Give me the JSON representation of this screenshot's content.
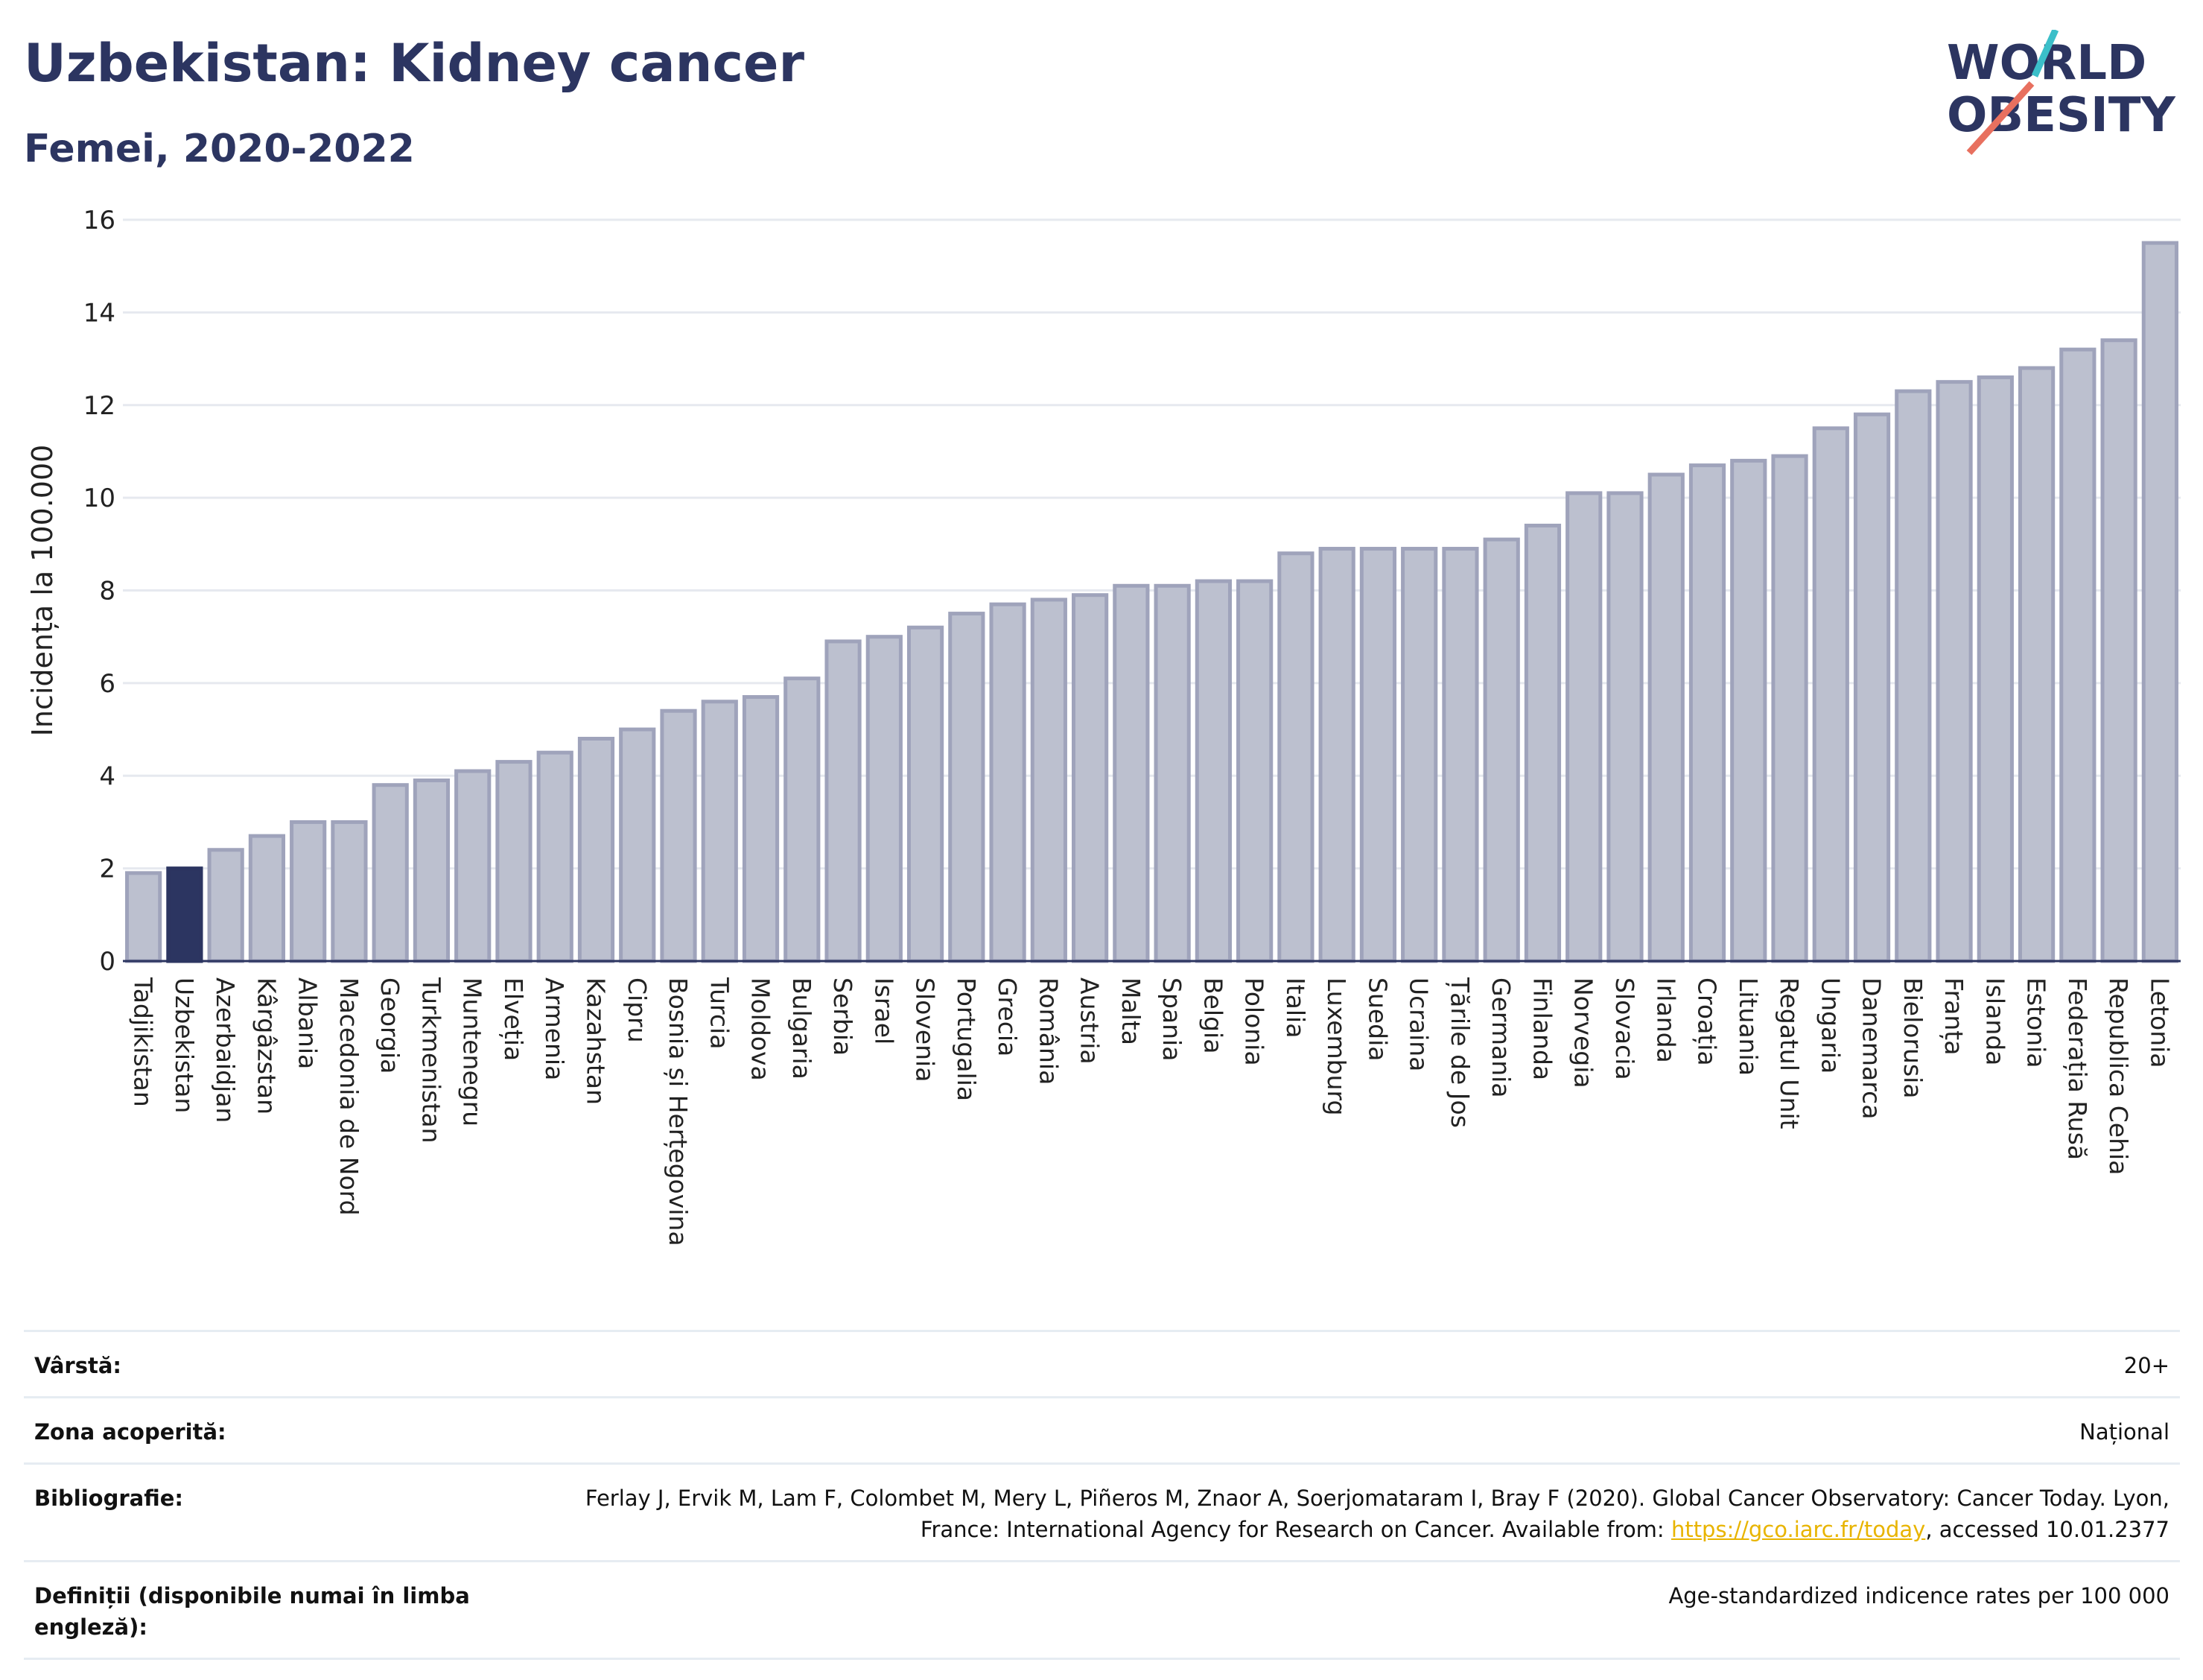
{
  "header": {
    "title": "Uzbekistan: Kidney cancer",
    "subtitle": "Femei, 2020-2022"
  },
  "logo": {
    "line1": "WORLD",
    "line2": "OBESITY",
    "colors": {
      "text": "#2c3561",
      "slash_top": "#3bbfc9",
      "slash_bottom": "#e8705f"
    }
  },
  "chart_data": {
    "type": "bar",
    "ylabel": "Incidența la 100.000",
    "xlabel": "",
    "ylim": [
      0,
      16
    ],
    "yticks": [
      0,
      2,
      4,
      6,
      8,
      10,
      12,
      14,
      16
    ],
    "grid": true,
    "highlight": "Uzbekistan",
    "colors": {
      "bar": "#bcc0cf",
      "bar_border": "#9fa3bb",
      "highlight": "#2c3561",
      "grid": "#e6e9ef",
      "axis": "#2c3561"
    },
    "categories": [
      "Tadjikistan",
      "Uzbekistan",
      "Azerbaidjan",
      "Kârgâzstan",
      "Albania",
      "Macedonia de Nord",
      "Georgia",
      "Turkmenistan",
      "Muntenegru",
      "Elveția",
      "Armenia",
      "Kazahstan",
      "Cipru",
      "Bosnia și Herțegovina",
      "Turcia",
      "Moldova",
      "Bulgaria",
      "Serbia",
      "Israel",
      "Slovenia",
      "Portugalia",
      "Grecia",
      "România",
      "Austria",
      "Malta",
      "Spania",
      "Belgia",
      "Polonia",
      "Italia",
      "Luxemburg",
      "Suedia",
      "Ucraina",
      "Țările de Jos",
      "Germania",
      "Finlanda",
      "Norvegia",
      "Slovacia",
      "Irlanda",
      "Croația",
      "Lituania",
      "Regatul Unit",
      "Ungaria",
      "Danemarca",
      "Bielorusia",
      "Franța",
      "Islanda",
      "Estonia",
      "Federația Rusă",
      "Republica Cehia",
      "Letonia"
    ],
    "values": [
      1.9,
      2.0,
      2.4,
      2.7,
      3.0,
      3.0,
      3.8,
      3.9,
      4.1,
      4.3,
      4.5,
      4.8,
      5.0,
      5.4,
      5.6,
      5.7,
      6.1,
      6.9,
      7.0,
      7.2,
      7.5,
      7.7,
      7.8,
      7.9,
      8.1,
      8.1,
      8.2,
      8.2,
      8.8,
      8.9,
      8.9,
      8.9,
      8.9,
      9.1,
      9.4,
      10.1,
      10.1,
      10.5,
      10.7,
      10.8,
      10.9,
      11.5,
      11.8,
      12.3,
      12.5,
      12.6,
      12.8,
      13.2,
      13.4,
      15.5
    ]
  },
  "info_table": {
    "rows": [
      {
        "key": "Vârstă:",
        "value": "20+"
      },
      {
        "key": "Zona acoperită:",
        "value": "Național"
      },
      {
        "key": "Bibliografie:",
        "value_before": "Ferlay J, Ervik M, Lam F, Colombet M, Mery L, Piñeros M, Znaor A, Soerjomataram I, Bray F (2020). Global Cancer Observatory: Cancer Today. Lyon, France: International Agency for Research on Cancer. Available from: ",
        "link": "https://gco.iarc.fr/today",
        "value_after": ", accessed 10.01.2377"
      },
      {
        "key": "Definiții (disponibile numai în limba engleză):",
        "value": "Age-standardized indicence rates per 100 000"
      }
    ]
  }
}
